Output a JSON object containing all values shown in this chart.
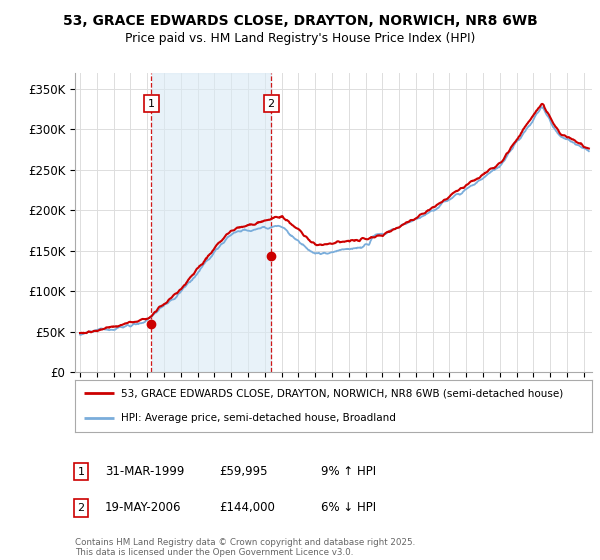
{
  "title_line1": "53, GRACE EDWARDS CLOSE, DRAYTON, NORWICH, NR8 6WB",
  "title_line2": "Price paid vs. HM Land Registry's House Price Index (HPI)",
  "ylabel_ticks": [
    "£0",
    "£50K",
    "£100K",
    "£150K",
    "£200K",
    "£250K",
    "£300K",
    "£350K"
  ],
  "ytick_values": [
    0,
    50000,
    100000,
    150000,
    200000,
    250000,
    300000,
    350000
  ],
  "ylim": [
    0,
    370000
  ],
  "xlim_start": 1994.7,
  "xlim_end": 2025.5,
  "sale1_x": 1999.25,
  "sale1_y": 59995,
  "sale2_x": 2006.38,
  "sale2_y": 144000,
  "legend_house": "53, GRACE EDWARDS CLOSE, DRAYTON, NORWICH, NR8 6WB (semi-detached house)",
  "legend_hpi": "HPI: Average price, semi-detached house, Broadland",
  "footer": "Contains HM Land Registry data © Crown copyright and database right 2025.\nThis data is licensed under the Open Government Licence v3.0.",
  "color_house": "#cc0000",
  "color_hpi": "#7aaddb",
  "color_vline": "#cc0000",
  "color_shade": "#daeaf5",
  "background_color": "#ffffff",
  "grid_color": "#dddddd"
}
